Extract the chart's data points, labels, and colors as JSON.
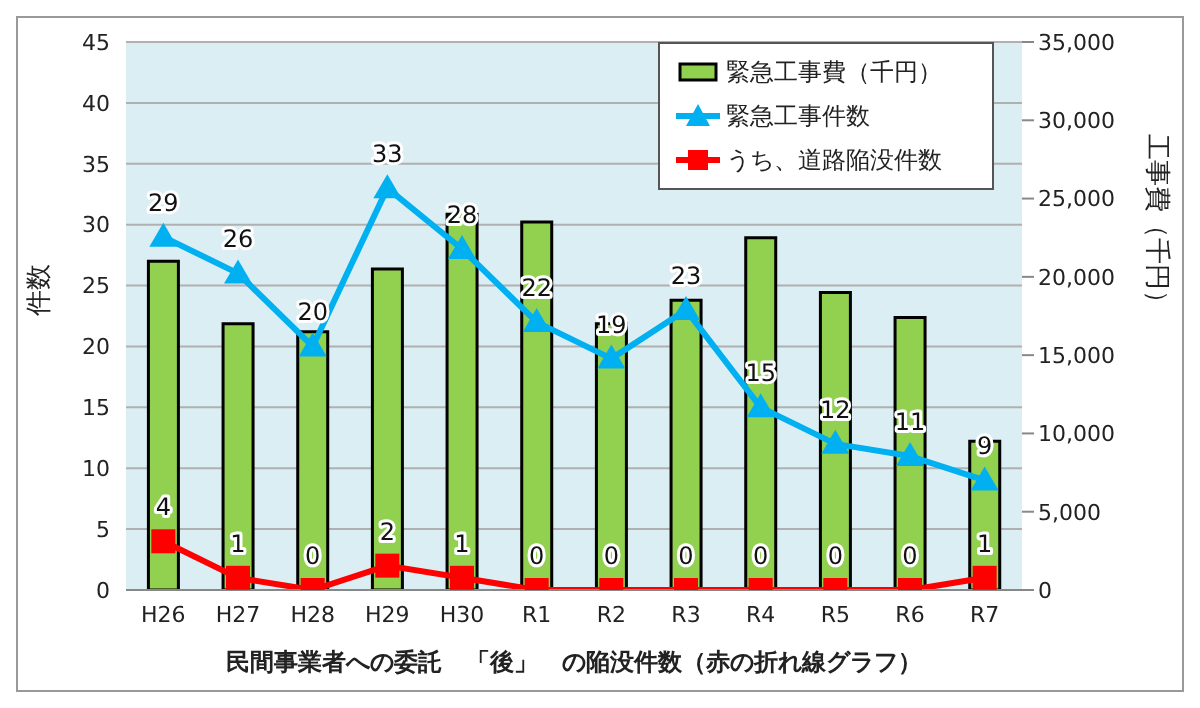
{
  "chart_data": {
    "type": "bar",
    "categories": [
      "H26",
      "H27",
      "H28",
      "H29",
      "H30",
      "R1",
      "R2",
      "R3",
      "R4",
      "R5",
      "R6",
      "R7"
    ],
    "xlabel": "民間事業者への委託　「後」　の陥没件数（赤の折れ線グラフ）",
    "ylabel": "件数",
    "y2label": "工事費（千円）",
    "series": [
      {
        "name": "緊急工事費（千円）",
        "axis": "y2",
        "color": "#92d050",
        "values": [
          21000,
          17000,
          16500,
          20500,
          24000,
          23500,
          17000,
          18500,
          22500,
          19000,
          17400,
          9500
        ]
      },
      {
        "name": "緊急工事件数",
        "type": "line",
        "marker": "triangle",
        "color": "#00b0f0",
        "values": [
          29,
          26,
          20,
          33,
          28,
          22,
          19,
          23,
          15,
          12,
          11,
          9
        ],
        "value_labels": [
          "29",
          "26",
          "20",
          "33",
          "28",
          "22",
          "19",
          "23",
          "15",
          "12",
          "11",
          "9"
        ]
      },
      {
        "name": "うち、道路陥没件数",
        "type": "line",
        "marker": "square",
        "color": "#ff0000",
        "values": [
          4,
          1,
          0,
          2,
          1,
          0,
          0,
          0,
          0,
          0,
          0,
          1
        ],
        "value_labels": [
          "4",
          "1",
          "0",
          "2",
          "1",
          "0",
          "0",
          "0",
          "0",
          "0",
          "0",
          "1"
        ]
      }
    ],
    "ylim": [
      0,
      45
    ],
    "yticks": [
      0,
      5,
      10,
      15,
      20,
      25,
      30,
      35,
      40,
      45
    ],
    "y2lim": [
      0,
      35000
    ],
    "y2ticks": [
      0,
      {
        "value": 5000,
        "label": "5,000"
      },
      {
        "value": 10000,
        "label": "10,000"
      },
      {
        "value": 15000,
        "label": "15,000"
      },
      {
        "value": 20000,
        "label": "20,000"
      },
      {
        "value": 25000,
        "label": "25,000"
      },
      {
        "value": 30000,
        "label": "30,000"
      },
      {
        "value": 35000,
        "label": "35,000"
      }
    ],
    "grid": "y",
    "legend": "top right"
  }
}
